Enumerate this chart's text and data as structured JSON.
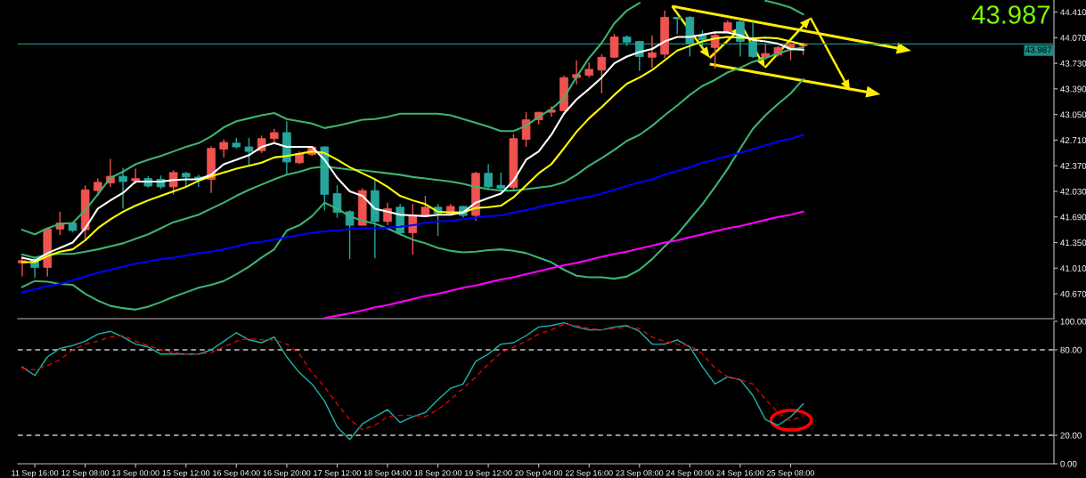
{
  "chart_data": [
    {
      "type": "candlestick",
      "categories": [
        null,
        null,
        null,
        null,
        null,
        null,
        null,
        null,
        null,
        null,
        null,
        null,
        null,
        null,
        null,
        null,
        null,
        null,
        null,
        null,
        null,
        null,
        null,
        null,
        null,
        null,
        null,
        null,
        null,
        null,
        null,
        null,
        null,
        null,
        null,
        null,
        null,
        null,
        null,
        null,
        null,
        null,
        null,
        null,
        null,
        null,
        null,
        null,
        null,
        null,
        null,
        null,
        null,
        null,
        null,
        null,
        null,
        null,
        null,
        null,
        null,
        null,
        null
      ],
      "ohlc": [
        [
          41.08,
          41.15,
          40.9,
          41.11
        ],
        [
          41.13,
          41.16,
          40.88,
          41.02
        ],
        [
          41.02,
          41.54,
          40.9,
          41.53
        ],
        [
          41.53,
          41.76,
          41.45,
          41.61
        ],
        [
          41.61,
          41.62,
          41.49,
          41.51
        ],
        [
          41.52,
          42.11,
          41.38,
          42.05
        ],
        [
          42.04,
          42.2,
          41.97,
          42.15
        ],
        [
          42.14,
          42.46,
          42.09,
          42.23
        ],
        [
          42.23,
          42.34,
          41.8,
          42.16
        ],
        [
          42.17,
          42.33,
          42.13,
          42.2
        ],
        [
          42.2,
          42.23,
          42.08,
          42.1
        ],
        [
          42.19,
          42.24,
          42.06,
          42.09
        ],
        [
          42.09,
          42.31,
          41.99,
          42.28
        ],
        [
          42.27,
          42.29,
          42.09,
          42.22
        ],
        [
          42.22,
          42.25,
          42.09,
          42.19
        ],
        [
          42.19,
          42.63,
          42.01,
          42.6
        ],
        [
          42.59,
          42.72,
          42.48,
          42.68
        ],
        [
          42.67,
          42.74,
          42.6,
          42.62
        ],
        [
          42.62,
          42.74,
          42.38,
          42.56
        ],
        [
          42.57,
          42.77,
          42.54,
          42.73
        ],
        [
          42.73,
          42.86,
          42.68,
          42.81
        ],
        [
          42.81,
          42.96,
          42.25,
          42.42
        ],
        [
          42.41,
          42.56,
          42.39,
          42.53
        ],
        [
          42.52,
          42.63,
          42.5,
          42.62
        ],
        [
          42.62,
          42.63,
          41.78,
          41.99
        ],
        [
          42.0,
          42.11,
          41.68,
          41.75
        ],
        [
          41.76,
          41.78,
          41.13,
          41.58
        ],
        [
          41.58,
          42.07,
          41.58,
          42.04
        ],
        [
          42.04,
          42.19,
          41.14,
          41.63
        ],
        [
          41.63,
          41.88,
          41.58,
          41.8
        ],
        [
          41.82,
          41.86,
          41.46,
          41.48
        ],
        [
          41.48,
          41.86,
          41.19,
          41.71
        ],
        [
          41.71,
          41.97,
          41.7,
          41.82
        ],
        [
          41.82,
          41.86,
          41.44,
          41.74
        ],
        [
          41.74,
          41.86,
          41.73,
          41.83
        ],
        [
          41.83,
          41.84,
          41.68,
          41.71
        ],
        [
          41.71,
          42.29,
          41.64,
          42.27
        ],
        [
          42.27,
          42.39,
          42.05,
          42.09
        ],
        [
          42.11,
          42.28,
          42.05,
          42.07
        ],
        [
          42.08,
          42.79,
          42.05,
          42.73
        ],
        [
          42.72,
          43.08,
          42.62,
          42.98
        ],
        [
          42.98,
          43.08,
          42.92,
          43.08
        ],
        [
          43.08,
          43.16,
          43.02,
          43.11
        ],
        [
          43.1,
          43.57,
          43.1,
          43.54
        ],
        [
          43.54,
          43.77,
          43.45,
          43.58
        ],
        [
          43.57,
          43.74,
          43.54,
          43.65
        ],
        [
          43.64,
          43.85,
          43.33,
          43.81
        ],
        [
          43.81,
          44.12,
          43.8,
          44.08
        ],
        [
          44.08,
          44.1,
          43.96,
          44.01
        ],
        [
          44.02,
          44.03,
          43.63,
          43.82
        ],
        [
          43.81,
          44.1,
          43.67,
          43.87
        ],
        [
          43.85,
          44.43,
          43.8,
          44.34
        ],
        [
          44.34,
          44.34,
          44.12,
          44.32
        ],
        [
          44.34,
          44.36,
          43.82,
          43.99
        ],
        [
          44.1,
          44.17,
          43.95,
          44.04
        ],
        [
          43.94,
          44.14,
          43.66,
          44.1
        ],
        [
          44.14,
          44.3,
          44.13,
          44.27
        ],
        [
          44.28,
          44.3,
          43.82,
          44.02
        ],
        [
          44.02,
          44.28,
          43.8,
          43.82
        ],
        [
          43.82,
          43.98,
          43.78,
          43.86
        ],
        [
          43.84,
          43.96,
          43.82,
          43.94
        ],
        [
          43.92,
          44.0,
          43.77,
          43.98
        ],
        [
          43.96,
          44.0,
          43.84,
          43.987
        ]
      ],
      "colors": [
        "#ef5350",
        "#26a69a",
        "#ef5350",
        "#ef5350",
        "#26a69a",
        "#ef5350",
        "#ef5350",
        "#ef5350",
        "#26a69a",
        "#ef5350",
        "#26a69a",
        "#26a69a",
        "#ef5350",
        "#26a69a",
        "#26a69a",
        "#ef5350",
        "#ef5350",
        "#26a69a",
        "#26a69a",
        "#ef5350",
        "#ef5350",
        "#26a69a",
        "#ef5350",
        "#ef5350",
        "#26a69a",
        "#26a69a",
        "#26a69a",
        "#ef5350",
        "#26a69a",
        "#ef5350",
        "#26a69a",
        "#ef5350",
        "#ef5350",
        "#26a69a",
        "#ef5350",
        "#26a69a",
        "#ef5350",
        "#26a69a",
        "#26a69a",
        "#ef5350",
        "#ef5350",
        "#ef5350",
        "#ef5350",
        "#ef5350",
        "#ef5350",
        "#ef5350",
        "#ef5350",
        "#ef5350",
        "#26a69a",
        "#26a69a",
        "#ef5350",
        "#ef5350",
        "#26a69a",
        "#26a69a",
        "#26a69a",
        "#ef5350",
        "#ef5350",
        "#26a69a",
        "#26a69a",
        "#ef5350",
        "#ef5350",
        "#ef5350",
        "#ef5350"
      ],
      "series": [
        {
          "type": "line",
          "color": "#3cb371",
          "values": [
            41.52,
            41.46,
            41.54,
            41.6,
            41.61,
            41.78,
            41.99,
            42.21,
            42.29,
            42.39,
            42.45,
            42.5,
            42.56,
            42.62,
            42.67,
            42.76,
            42.88,
            42.96,
            43.0,
            43.04,
            43.07,
            42.99,
            42.96,
            42.93,
            42.87,
            42.9,
            42.94,
            42.98,
            42.99,
            43.02,
            43.06,
            43.06,
            43.06,
            43.06,
            43.04,
            42.99,
            42.94,
            42.89,
            42.83,
            42.83,
            42.9,
            43.02,
            43.12,
            43.27,
            43.55,
            43.8,
            44.0,
            44.26,
            44.43,
            44.53,
            null,
            null,
            null,
            null,
            null,
            null,
            null,
            null,
            null,
            44.56,
            44.52,
            44.47,
            44.38
          ]
        },
        {
          "type": "line",
          "color": "#3cb371",
          "values": [
            41.19,
            41.15,
            41.19,
            41.2,
            41.2,
            41.23,
            41.26,
            41.3,
            41.34,
            41.4,
            41.46,
            41.54,
            41.62,
            41.67,
            41.72,
            41.8,
            41.88,
            41.97,
            42.05,
            42.12,
            42.19,
            42.25,
            42.29,
            42.34,
            42.36,
            42.34,
            42.32,
            42.31,
            42.29,
            42.27,
            42.25,
            42.22,
            42.2,
            42.18,
            42.16,
            42.13,
            42.09,
            42.06,
            42.04,
            42.04,
            42.06,
            42.08,
            42.1,
            42.15,
            42.25,
            42.37,
            42.47,
            42.58,
            42.7,
            42.78,
            42.9,
            43.04,
            43.17,
            43.31,
            43.43,
            43.51,
            43.61,
            43.67,
            43.75,
            43.8,
            43.86,
            43.91,
            43.94
          ]
        },
        {
          "type": "line",
          "color": "#3cb371",
          "values": [
            40.76,
            40.84,
            40.83,
            40.8,
            40.79,
            40.67,
            40.58,
            40.51,
            40.48,
            40.46,
            40.5,
            40.56,
            40.63,
            40.69,
            40.75,
            40.79,
            40.84,
            40.93,
            41.03,
            41.15,
            41.26,
            41.51,
            41.58,
            41.7,
            41.88,
            41.8,
            41.7,
            41.64,
            41.6,
            41.54,
            41.46,
            41.39,
            41.34,
            41.28,
            41.24,
            41.22,
            41.23,
            41.25,
            41.26,
            41.24,
            41.21,
            41.15,
            41.09,
            40.99,
            40.91,
            40.89,
            40.89,
            40.87,
            40.9,
            40.99,
            41.13,
            41.3,
            41.46,
            41.66,
            41.86,
            42.09,
            42.33,
            42.6,
            42.86,
            43.04,
            43.19,
            43.33,
            43.52
          ]
        },
        {
          "type": "line",
          "color": "#0000ff",
          "values": [
            40.69,
            40.73,
            40.77,
            40.8,
            40.85,
            40.9,
            40.95,
            40.99,
            41.03,
            41.07,
            41.1,
            41.13,
            41.15,
            41.18,
            41.21,
            41.23,
            41.26,
            41.3,
            41.34,
            41.36,
            41.39,
            41.42,
            41.45,
            41.48,
            41.5,
            41.51,
            41.53,
            41.54,
            41.54,
            41.55,
            41.56,
            41.58,
            41.61,
            41.63,
            41.64,
            41.66,
            41.68,
            41.7,
            41.71,
            41.75,
            41.78,
            41.82,
            41.86,
            41.89,
            41.93,
            41.96,
            42.0,
            42.05,
            42.1,
            42.15,
            42.19,
            42.25,
            42.3,
            42.35,
            42.41,
            42.45,
            42.5,
            42.54,
            42.59,
            42.64,
            42.69,
            42.73,
            42.78
          ]
        },
        {
          "type": "line",
          "color": "#ff00ff",
          "values": [
            null,
            null,
            null,
            null,
            null,
            null,
            null,
            null,
            null,
            null,
            null,
            null,
            null,
            null,
            null,
            null,
            null,
            null,
            null,
            null,
            null,
            null,
            null,
            null,
            40.35,
            40.38,
            40.41,
            40.45,
            40.49,
            40.52,
            40.56,
            40.6,
            40.64,
            40.67,
            40.71,
            40.75,
            40.78,
            40.82,
            40.86,
            40.89,
            40.93,
            40.97,
            41.01,
            41.05,
            41.08,
            41.12,
            41.16,
            41.2,
            41.23,
            41.27,
            41.31,
            41.35,
            41.38,
            41.42,
            41.46,
            41.5,
            41.54,
            41.57,
            41.61,
            41.65,
            41.69,
            41.72,
            41.76
          ]
        },
        {
          "type": "line",
          "color": "#ffff00",
          "values": [
            41.09,
            41.09,
            41.17,
            41.23,
            41.26,
            41.38,
            41.54,
            41.66,
            41.76,
            41.84,
            41.91,
            41.97,
            42.03,
            42.09,
            42.17,
            42.23,
            42.28,
            42.33,
            42.37,
            42.41,
            42.48,
            42.5,
            42.53,
            42.56,
            42.54,
            42.45,
            42.35,
            42.27,
            42.19,
            42.09,
            41.97,
            41.91,
            41.86,
            41.76,
            41.75,
            41.75,
            41.81,
            41.82,
            41.84,
            41.95,
            42.11,
            42.27,
            42.39,
            42.6,
            42.82,
            43.0,
            43.15,
            43.31,
            43.46,
            43.54,
            43.64,
            43.77,
            43.9,
            43.96,
            44.02,
            44.06,
            44.08,
            44.07,
            44.06,
            44.07,
            44.06,
            44.02,
            43.98
          ]
        },
        {
          "type": "line",
          "color": "#ffffff",
          "values": [
            41.15,
            41.11,
            41.21,
            41.28,
            41.35,
            41.54,
            41.8,
            41.91,
            42.01,
            42.16,
            42.16,
            42.16,
            42.18,
            42.19,
            42.19,
            42.25,
            42.39,
            42.45,
            42.51,
            42.62,
            42.67,
            42.62,
            42.62,
            42.62,
            42.45,
            42.21,
            42.03,
            41.97,
            41.8,
            41.76,
            41.72,
            41.71,
            41.7,
            41.72,
            41.72,
            41.75,
            41.88,
            41.94,
            42.0,
            42.17,
            42.45,
            42.56,
            42.78,
            43.06,
            43.25,
            43.39,
            43.54,
            43.73,
            43.82,
            43.88,
            43.92,
            44.02,
            44.08,
            44.08,
            44.11,
            44.14,
            44.14,
            44.1,
            44.04,
            44.02,
            43.99,
            43.92,
            43.91
          ]
        }
      ],
      "ylim": [
        40.34,
        44.57
      ],
      "yticks": [
        {
          "value": 44.41,
          "label": "44.410"
        },
        {
          "value": 44.07,
          "label": "44.070"
        },
        {
          "value": 43.73,
          "label": "43.730"
        },
        {
          "value": 43.39,
          "label": "43.390"
        },
        {
          "value": 43.05,
          "label": "43.050"
        },
        {
          "value": 42.71,
          "label": "42.710"
        },
        {
          "value": 42.37,
          "label": "42.370"
        },
        {
          "value": 42.03,
          "label": "42.030"
        },
        {
          "value": 41.69,
          "label": "41.690"
        },
        {
          "value": 41.35,
          "label": "41.350"
        },
        {
          "value": 41.01,
          "label": "41.010"
        },
        {
          "value": 40.67,
          "label": "40.670"
        }
      ],
      "ref_lines": [
        {
          "axis": "y",
          "value": 43.987,
          "label": "43.987",
          "color": "#1a8c87",
          "line_style": "solid"
        }
      ],
      "annotations": [
        "43.987"
      ],
      "tick_labels": "y"
    },
    {
      "type": "line",
      "categories": [
        null,
        "11 Sep 16:00",
        null,
        null,
        null,
        "12 Sep 08:00",
        null,
        null,
        null,
        "13 Sep 00:00",
        null,
        null,
        null,
        "15 Sep 12:00",
        null,
        null,
        null,
        "16 Sep 04:00",
        null,
        null,
        null,
        "16 Sep 20:00",
        null,
        null,
        null,
        "17 Sep 12:00",
        null,
        null,
        null,
        "18 Sep 04:00",
        null,
        null,
        null,
        "18 Sep 20:00",
        null,
        null,
        null,
        "19 Sep 12:00",
        null,
        null,
        null,
        "20 Sep 04:00",
        null,
        null,
        null,
        "22 Sep 16:00",
        null,
        null,
        null,
        "23 Sep 08:00",
        null,
        null,
        null,
        "24 Sep 00:00",
        null,
        null,
        null,
        "24 Sep 16:00",
        null,
        null,
        null,
        "25 Sep 08:00",
        null
      ],
      "series": [
        {
          "color": "#20b2aa",
          "line_style": "solid",
          "values": [
            68,
            62,
            75,
            81,
            83,
            86,
            91,
            93,
            89,
            84,
            82,
            77,
            77,
            77,
            77,
            80,
            86,
            92,
            87,
            85,
            89,
            75,
            64,
            56,
            44,
            26,
            17,
            28,
            33,
            38,
            29,
            33,
            36,
            45,
            53,
            56,
            72,
            77,
            84,
            85,
            90,
            96,
            97,
            99,
            96,
            94,
            94,
            96,
            97,
            93,
            84,
            84,
            87,
            82,
            68,
            56,
            61,
            59,
            48,
            31,
            27,
            33,
            42
          ]
        },
        {
          "color": "#e00000",
          "line_style": "dashed",
          "values": [
            67,
            66,
            69,
            73,
            80,
            84,
            86,
            89,
            90,
            86,
            83,
            80,
            78,
            77,
            77,
            78,
            82,
            86,
            88,
            87,
            87,
            84,
            77,
            64,
            54,
            42,
            31,
            24,
            27,
            33,
            34,
            34,
            33,
            38,
            45,
            53,
            61,
            70,
            78,
            82,
            86,
            91,
            94,
            98,
            97,
            95,
            94,
            95,
            96,
            95,
            89,
            86,
            84,
            83,
            77,
            67,
            61,
            59,
            56,
            45,
            36,
            30,
            34
          ]
        }
      ],
      "ylim": [
        0,
        100
      ],
      "yticks": [
        {
          "value": 100,
          "label": "100.00"
        },
        {
          "value": 80,
          "label": "80.00"
        },
        {
          "value": 20,
          "label": "20.00"
        },
        {
          "value": 0,
          "label": "0.00"
        }
      ],
      "ref_lines": [
        {
          "axis": "y",
          "value": 80,
          "color": "#c8c8c8",
          "line_style": "dashed"
        },
        {
          "axis": "y",
          "value": 20,
          "color": "#c8c8c8",
          "line_style": "dashed"
        }
      ]
    }
  ]
}
